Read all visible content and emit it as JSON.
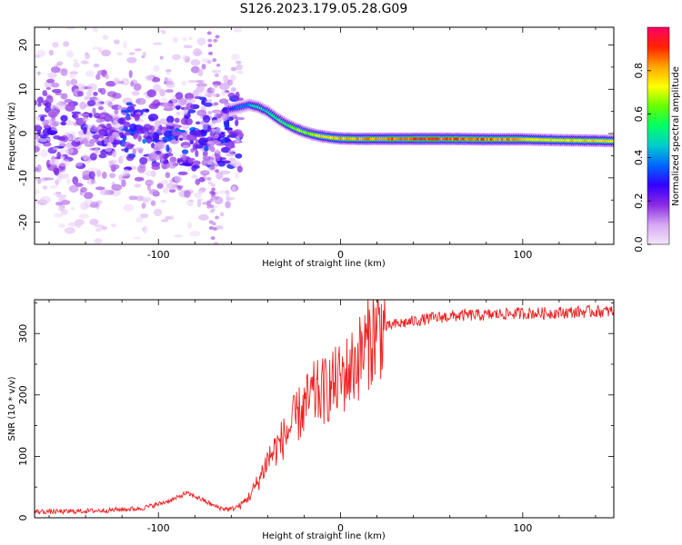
{
  "title": "S126.2023.179.05.28.G09",
  "chart_data": [
    {
      "type": "heatmap",
      "xlabel": "Height of straight line (km)",
      "ylabel": "Frequency (Hz)",
      "xlim": [
        -168,
        150
      ],
      "ylim": [
        -25,
        24
      ],
      "xticks": [
        -100,
        0,
        100
      ],
      "yticks": [
        -20,
        -10,
        0,
        10,
        20
      ],
      "grid": false,
      "colorbar": {
        "label": "Normalized spectral amplitude",
        "range": [
          0,
          1
        ],
        "ticks": [
          0.0,
          0.2,
          0.4,
          0.6,
          0.8
        ],
        "colormap": [
          "#f4e6fa",
          "#d6a8f2",
          "#8a2be2",
          "#3300ff",
          "#0066ff",
          "#00cccc",
          "#00ff66",
          "#66ff00",
          "#ffff00",
          "#ffa500",
          "#ff2200",
          "#ff0066"
        ]
      },
      "ridge": {
        "x": [
          -60,
          -50,
          -45,
          -40,
          -35,
          -30,
          -25,
          -20,
          -15,
          -10,
          -5,
          0,
          10,
          20,
          40,
          60,
          80,
          100,
          120,
          140,
          150
        ],
        "y": [
          5.5,
          6.5,
          6.0,
          5.0,
          3.5,
          2.2,
          1.2,
          0.4,
          -0.2,
          -0.6,
          -0.9,
          -1.1,
          -1.2,
          -1.2,
          -1.2,
          -1.2,
          -1.3,
          -1.3,
          -1.5,
          -1.6,
          -1.7
        ],
        "amplitude": [
          0.35,
          0.45,
          0.55,
          0.5,
          0.6,
          0.62,
          0.68,
          0.72,
          0.75,
          0.8,
          0.82,
          0.85,
          0.88,
          0.9,
          0.95,
          0.93,
          0.92,
          0.85,
          0.8,
          0.82,
          0.8
        ]
      },
      "noise": {
        "x_range": [
          -168,
          -55
        ],
        "y_range": [
          -25,
          24
        ],
        "amplitude_max": 0.3
      }
    },
    {
      "type": "line",
      "xlabel": "Height of straight line (km)",
      "ylabel": "SNR (10 * v/v)",
      "xlim": [
        -168,
        150
      ],
      "ylim": [
        0,
        355
      ],
      "xticks": [
        -100,
        0,
        100
      ],
      "yticks": [
        0,
        100,
        200,
        300
      ],
      "grid": false,
      "series": [
        {
          "color": "#ee2222",
          "x": [
            -168,
            -150,
            -130,
            -110,
            -100,
            -90,
            -85,
            -80,
            -75,
            -70,
            -65,
            -60,
            -55,
            -50,
            -45,
            -40,
            -35,
            -30,
            -25,
            -20,
            -15,
            -10,
            -5,
            0,
            5,
            10,
            15,
            20,
            25,
            30,
            40,
            50,
            60,
            70,
            80,
            90,
            100,
            110,
            120,
            130,
            140,
            150
          ],
          "values": [
            10,
            10,
            12,
            15,
            22,
            32,
            40,
            35,
            28,
            20,
            15,
            14,
            20,
            35,
            60,
            95,
            115,
            135,
            160,
            180,
            200,
            205,
            215,
            225,
            240,
            260,
            285,
            305,
            310,
            315,
            320,
            325,
            328,
            330,
            330,
            332,
            333,
            333,
            334,
            335,
            336,
            336
          ]
        }
      ]
    }
  ]
}
